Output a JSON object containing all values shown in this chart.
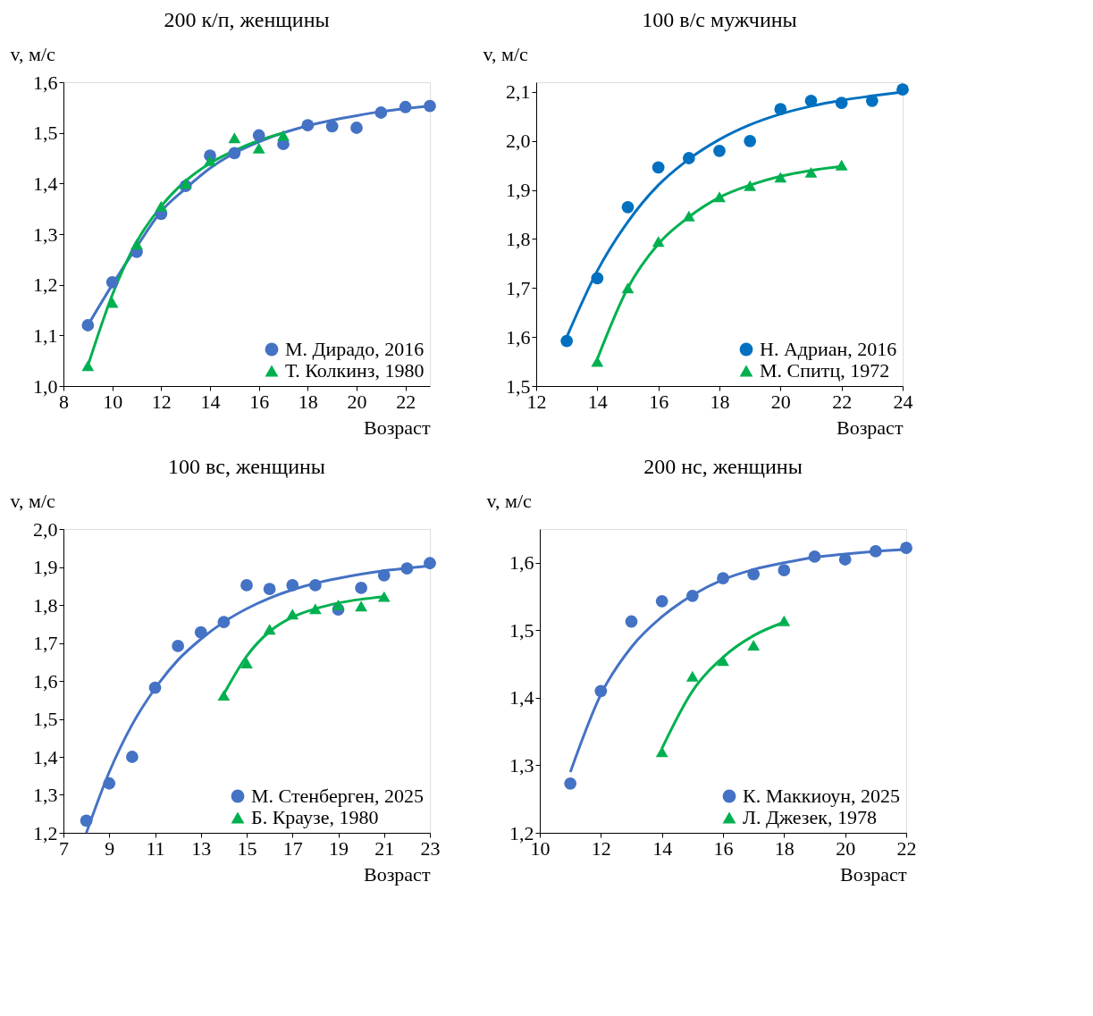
{
  "chart_data": [
    {
      "type": "scatter",
      "title": "200 к/п, женщины",
      "xlabel": "Возраст",
      "ylabel": "v, м/с",
      "xlim": [
        8,
        23
      ],
      "xticks": [
        8,
        10,
        12,
        14,
        16,
        18,
        20,
        22
      ],
      "ylim": [
        1.0,
        1.6
      ],
      "yticks": [
        {
          "value": 1.0,
          "label": "1,0"
        },
        {
          "value": 1.1,
          "label": "1,1"
        },
        {
          "value": 1.2,
          "label": "1,2"
        },
        {
          "value": 1.3,
          "label": "1,3"
        },
        {
          "value": 1.4,
          "label": "1,4"
        },
        {
          "value": 1.5,
          "label": "1,5"
        },
        {
          "value": 1.6,
          "label": "1,6"
        }
      ],
      "legend": "bottom right",
      "series": [
        {
          "name": "М. Дирадо, 2016",
          "color": "#4472c4",
          "marker": "circle",
          "x": [
            9,
            10,
            11,
            12,
            13,
            14,
            15,
            16,
            17,
            18,
            19,
            20,
            21,
            22,
            23
          ],
          "values": [
            1.12,
            1.205,
            1.265,
            1.34,
            1.395,
            1.455,
            1.46,
            1.495,
            1.478,
            1.515,
            1.513,
            1.51,
            1.54,
            1.551,
            1.553
          ]
        },
        {
          "name": "Т. Колкинз, 1980",
          "color": "#00b050",
          "marker": "triangle",
          "x": [
            9,
            10,
            11,
            12,
            13,
            14,
            15,
            16,
            17
          ],
          "values": [
            1.04,
            1.165,
            1.28,
            1.355,
            1.4,
            1.445,
            1.49,
            1.47,
            1.495
          ]
        },
        {
          "type": "line",
          "color": "#4472c4",
          "marker": "none",
          "x": [
            9,
            10,
            11,
            12,
            13,
            14,
            15,
            16,
            17,
            18,
            19,
            20,
            21,
            22,
            23
          ],
          "values": [
            1.12,
            1.2,
            1.275,
            1.345,
            1.39,
            1.43,
            1.46,
            1.482,
            1.5,
            1.514,
            1.525,
            1.534,
            1.542,
            1.548,
            1.553
          ]
        },
        {
          "type": "line",
          "color": "#00b050",
          "marker": "none",
          "x": [
            9,
            10,
            11,
            12,
            13,
            14,
            15,
            16,
            17
          ],
          "values": [
            1.04,
            1.18,
            1.285,
            1.355,
            1.405,
            1.44,
            1.465,
            1.485,
            1.5
          ]
        }
      ]
    },
    {
      "type": "scatter",
      "title": "100 в/с мужчины",
      "xlabel": "Возраст",
      "ylabel": "v, м/с",
      "xlim": [
        12,
        24
      ],
      "xticks": [
        12,
        14,
        16,
        18,
        20,
        22,
        24
      ],
      "ylim": [
        1.5,
        2.12
      ],
      "yticks": [
        {
          "value": 1.5,
          "label": "1,5"
        },
        {
          "value": 1.6,
          "label": "1,6"
        },
        {
          "value": 1.7,
          "label": "1,7"
        },
        {
          "value": 1.8,
          "label": "1,8"
        },
        {
          "value": 1.9,
          "label": "1,9"
        },
        {
          "value": 2.0,
          "label": "2,0"
        },
        {
          "value": 2.1,
          "label": "2,1"
        }
      ],
      "legend": "bottom right",
      "series": [
        {
          "name": "Н. Адриан, 2016",
          "color": "#0070c0",
          "marker": "circle",
          "x": [
            13,
            14,
            15,
            16,
            17,
            18,
            19,
            20,
            21,
            22,
            23,
            24
          ],
          "values": [
            1.592,
            1.72,
            1.865,
            1.946,
            1.965,
            1.98,
            2.0,
            2.065,
            2.082,
            2.078,
            2.082,
            2.105
          ]
        },
        {
          "name": "М. Спитц, 1972",
          "color": "#00b050",
          "marker": "triangle",
          "x": [
            14,
            15,
            16,
            17,
            18,
            19,
            20,
            21,
            22
          ],
          "values": [
            1.55,
            1.7,
            1.795,
            1.847,
            1.886,
            1.909,
            1.926,
            1.936,
            1.951
          ]
        },
        {
          "type": "line",
          "color": "#0070c0",
          "marker": "none",
          "x": [
            13,
            14,
            15,
            16,
            17,
            18,
            19,
            20,
            21,
            22,
            23,
            24
          ],
          "values": [
            1.6,
            1.735,
            1.835,
            1.91,
            1.963,
            2.003,
            2.033,
            2.055,
            2.071,
            2.083,
            2.092,
            2.1
          ]
        },
        {
          "type": "line",
          "color": "#00b050",
          "marker": "none",
          "x": [
            14,
            15,
            16,
            17,
            18,
            19,
            20,
            21,
            22
          ],
          "values": [
            1.555,
            1.7,
            1.79,
            1.845,
            1.885,
            1.91,
            1.928,
            1.94,
            1.948
          ]
        }
      ]
    },
    {
      "type": "scatter",
      "title": "100 вс, женщины",
      "xlabel": "Возраст",
      "ylabel": "v, м/с",
      "xlim": [
        7,
        23
      ],
      "xticks": [
        7,
        9,
        11,
        13,
        15,
        17,
        19,
        21,
        23
      ],
      "ylim": [
        1.2,
        2.0
      ],
      "yticks": [
        {
          "value": 1.2,
          "label": "1,2"
        },
        {
          "value": 1.3,
          "label": "1,3"
        },
        {
          "value": 1.4,
          "label": "1,4"
        },
        {
          "value": 1.5,
          "label": "1,5"
        },
        {
          "value": 1.6,
          "label": "1,6"
        },
        {
          "value": 1.7,
          "label": "1,7"
        },
        {
          "value": 1.8,
          "label": "1,8"
        },
        {
          "value": 1.9,
          "label": "1,9"
        },
        {
          "value": 2.0,
          "label": "2,0"
        }
      ],
      "legend": "bottom right",
      "series": [
        {
          "name": "М. Стенберген, 2025",
          "color": "#4472c4",
          "marker": "circle",
          "x": [
            8,
            9,
            10,
            11,
            12,
            13,
            14,
            15,
            16,
            17,
            18,
            19,
            20,
            21,
            22,
            23
          ],
          "values": [
            1.232,
            1.33,
            1.4,
            1.582,
            1.692,
            1.728,
            1.755,
            1.852,
            1.842,
            1.852,
            1.852,
            1.788,
            1.845,
            1.878,
            1.896,
            1.91
          ]
        },
        {
          "name": "Б. Краузе, 1980",
          "color": "#00b050",
          "marker": "triangle",
          "x": [
            14,
            15,
            16,
            17,
            18,
            19,
            20,
            21
          ],
          "values": [
            1.562,
            1.647,
            1.736,
            1.776,
            1.79,
            1.8,
            1.797,
            1.822
          ]
        },
        {
          "type": "line",
          "color": "#4472c4",
          "marker": "none",
          "x": [
            8,
            9,
            10,
            11,
            12,
            13,
            14,
            15,
            16,
            17,
            18,
            19,
            20,
            21,
            22,
            23
          ],
          "values": [
            1.2,
            1.36,
            1.485,
            1.58,
            1.655,
            1.71,
            1.755,
            1.79,
            1.818,
            1.84,
            1.857,
            1.87,
            1.881,
            1.89,
            1.897,
            1.903
          ]
        },
        {
          "type": "line",
          "color": "#00b050",
          "marker": "none",
          "x": [
            14,
            15,
            16,
            17,
            18,
            19,
            20,
            21
          ],
          "values": [
            1.565,
            1.665,
            1.73,
            1.768,
            1.79,
            1.805,
            1.815,
            1.822
          ]
        }
      ]
    },
    {
      "type": "scatter",
      "title": "200 нс, женщины",
      "xlabel": "Возраст",
      "ylabel": "v, м/с",
      "xlim": [
        10,
        22
      ],
      "xticks": [
        10,
        12,
        14,
        16,
        18,
        20,
        22
      ],
      "ylim": [
        1.2,
        1.65
      ],
      "yticks": [
        {
          "value": 1.2,
          "label": "1,2"
        },
        {
          "value": 1.3,
          "label": "1,3"
        },
        {
          "value": 1.4,
          "label": "1,4"
        },
        {
          "value": 1.5,
          "label": "1,5"
        },
        {
          "value": 1.6,
          "label": "1,6"
        }
      ],
      "legend": "bottom right",
      "series": [
        {
          "name": "К. Маккиоун, 2025",
          "color": "#4472c4",
          "marker": "circle",
          "x": [
            11,
            12,
            13,
            14,
            15,
            16,
            17,
            18,
            19,
            20,
            21,
            22
          ],
          "values": [
            1.273,
            1.41,
            1.513,
            1.543,
            1.551,
            1.577,
            1.583,
            1.589,
            1.609,
            1.605,
            1.617,
            1.622
          ]
        },
        {
          "name": "Л. Джезек, 1978",
          "color": "#00b050",
          "marker": "triangle",
          "x": [
            14,
            15,
            16,
            17,
            18
          ],
          "values": [
            1.32,
            1.432,
            1.455,
            1.478,
            1.514
          ]
        },
        {
          "type": "line",
          "color": "#4472c4",
          "marker": "none",
          "x": [
            11,
            12,
            13,
            14,
            15,
            16,
            17,
            18,
            19,
            20,
            21,
            22
          ],
          "values": [
            1.29,
            1.405,
            1.475,
            1.52,
            1.552,
            1.575,
            1.59,
            1.6,
            1.608,
            1.613,
            1.617,
            1.62
          ]
        },
        {
          "type": "line",
          "color": "#00b050",
          "marker": "none",
          "x": [
            14,
            15,
            16,
            17,
            18
          ],
          "values": [
            1.325,
            1.41,
            1.46,
            1.492,
            1.512
          ]
        }
      ]
    }
  ]
}
